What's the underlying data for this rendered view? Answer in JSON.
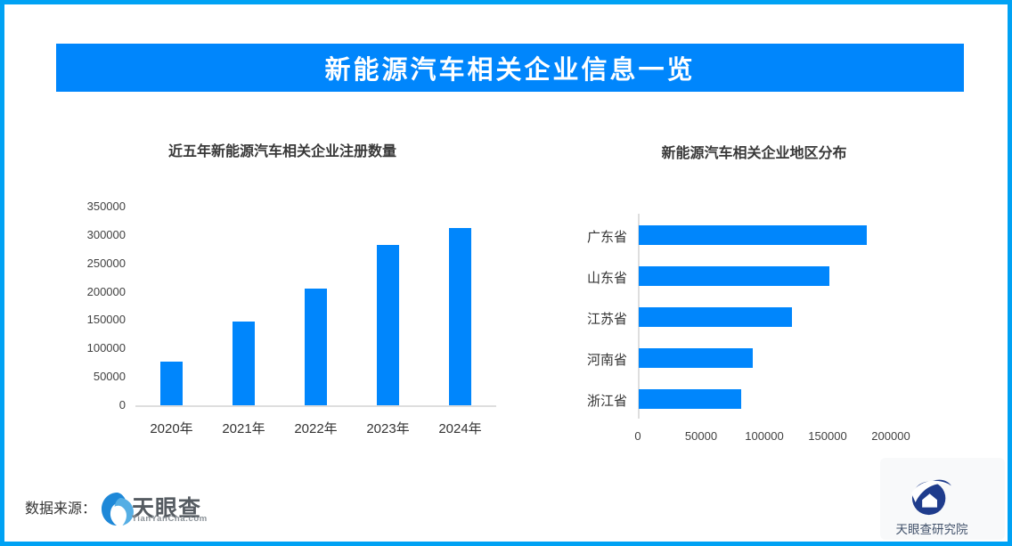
{
  "page": {
    "banner_title": "新能源汽车相关企业信息一览",
    "banner_color": "#0086FC",
    "border_color": "#00A2F4",
    "bar_color": "#0086FC",
    "axis_color": "#dedede"
  },
  "chart_data": [
    {
      "type": "bar",
      "orientation": "vertical",
      "title": "近五年新能源汽车相关企业注册数量",
      "categories": [
        "2020年",
        "2021年",
        "2022年",
        "2023年",
        "2024年"
      ],
      "values": [
        77000,
        147000,
        205000,
        282000,
        313000
      ],
      "ylabel": "",
      "xlabel": "",
      "ylim": [
        0,
        350000
      ],
      "ytick_step": 50000,
      "grid": false,
      "legend": "none",
      "bar_color": "#0086FC"
    },
    {
      "type": "bar",
      "orientation": "horizontal",
      "title": "新能源汽车相关企业地区分布",
      "categories": [
        "广东省",
        "山东省",
        "江苏省",
        "河南省",
        "浙江省"
      ],
      "values": [
        180000,
        151000,
        121000,
        90000,
        81000
      ],
      "ylabel": "",
      "xlabel": "",
      "xlim": [
        0,
        200000
      ],
      "xtick_step": 50000,
      "grid": false,
      "legend": "none",
      "bar_color": "#0086FC"
    }
  ],
  "footer": {
    "source_label": "数据来源：",
    "tianyancha_name": "天眼查",
    "tianyancha_url": "TianYanCha.com",
    "research_name": "天眼查研究院"
  }
}
